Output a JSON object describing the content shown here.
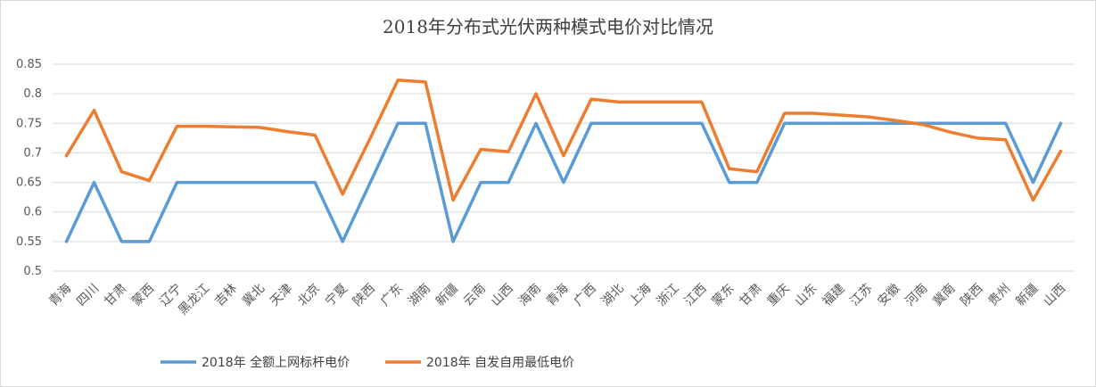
{
  "chart_data": {
    "type": "line",
    "title": "2018年分布式光伏两种模式电价对比情况",
    "xlabel": "",
    "ylabel": "",
    "ylim": [
      0.5,
      0.85
    ],
    "yticks": [
      "0.5",
      "0.55",
      "0.6",
      "0.65",
      "0.7",
      "0.75",
      "0.8",
      "0.85"
    ],
    "grid": true,
    "legend_position": "bottom",
    "categories": [
      "青海",
      "四川",
      "甘肃",
      "蒙西",
      "辽宁",
      "黑龙江",
      "吉林",
      "冀北",
      "天津",
      "北京",
      "宁夏",
      "陕西",
      "广东",
      "湖南",
      "新疆",
      "云南",
      "山西",
      "海南",
      "青海",
      "广西",
      "湖北",
      "上海",
      "浙江",
      "江西",
      "蒙东",
      "甘肃",
      "重庆",
      "山东",
      "福建",
      "江苏",
      "安徽",
      "河南",
      "冀南",
      "陕西",
      "贵州",
      "新疆",
      "山西"
    ],
    "series": [
      {
        "name": "2018年 全额上网标杆电价",
        "color": "#5B9BD5",
        "values": [
          0.55,
          0.65,
          0.55,
          0.55,
          0.65,
          0.65,
          0.65,
          0.65,
          0.65,
          0.65,
          0.55,
          0.65,
          0.75,
          0.75,
          0.55,
          0.65,
          0.65,
          0.75,
          0.65,
          0.75,
          0.75,
          0.75,
          0.75,
          0.75,
          0.65,
          0.65,
          0.75,
          0.75,
          0.75,
          0.75,
          0.75,
          0.75,
          0.75,
          0.75,
          0.75,
          0.65,
          0.75
        ]
      },
      {
        "name": "2018年 自发自用最低电价",
        "color": "#ED7D31",
        "values": [
          0.695,
          0.772,
          0.668,
          0.653,
          0.745,
          0.745,
          0.744,
          0.743,
          0.736,
          0.73,
          0.63,
          0.725,
          0.823,
          0.82,
          0.62,
          0.706,
          0.702,
          0.8,
          0.695,
          0.791,
          0.786,
          0.786,
          0.786,
          0.786,
          0.673,
          0.668,
          0.767,
          0.767,
          0.764,
          0.761,
          0.755,
          0.748,
          0.735,
          0.725,
          0.722,
          0.62,
          0.703
        ]
      }
    ]
  }
}
